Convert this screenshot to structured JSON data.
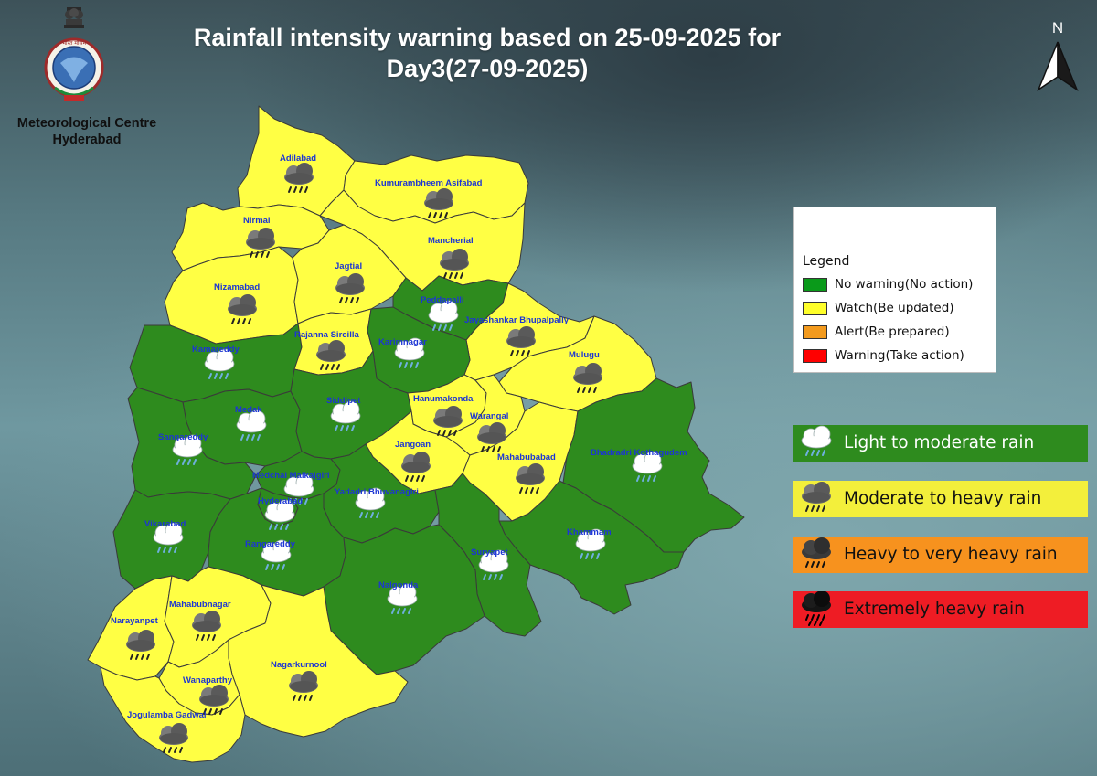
{
  "title": {
    "line1": "Rainfall intensity warning based on 25-09-2025 for",
    "line2": "Day3(27-09-2025)"
  },
  "organization": {
    "line1": "Meteorological Centre",
    "line2": "Hyderabad"
  },
  "north_arrow": {
    "label": "N"
  },
  "legend": {
    "title": "Legend",
    "items": [
      {
        "label": "No warning(No action)",
        "color": "#0a9a1a"
      },
      {
        "label": "Watch(Be updated)",
        "color": "#ffff2a"
      },
      {
        "label": "Alert(Be prepared)",
        "color": "#f39a1d"
      },
      {
        "label": "Warning(Take action)",
        "color": "#ff0000"
      }
    ]
  },
  "rain_categories": [
    {
      "label": "Light to moderate rain",
      "color": "#2e8b1e",
      "text_color": "#ffffff",
      "icon": "light-rain-cloud-icon"
    },
    {
      "label": "Moderate to heavy rain",
      "color": "#f3ef3b",
      "text_color": "#111111",
      "icon": "moderate-rain-cloud-icon"
    },
    {
      "label": "Heavy to very heavy rain",
      "color": "#f7921e",
      "text_color": "#111111",
      "icon": "heavy-rain-cloud-icon"
    },
    {
      "label": "Extremely heavy rain",
      "color": "#ee1c24",
      "text_color": "#111111",
      "icon": "extreme-rain-cloud-icon"
    }
  ],
  "colors": {
    "no_warning": "#2e8b1e",
    "watch": "#ffff44",
    "district_label": "#1c35d4"
  },
  "districts": [
    {
      "name": "Adilabad",
      "warning": "Watch(Be updated)",
      "rain": "Moderate to heavy rain"
    },
    {
      "name": "Kumurambheem Asifabad",
      "warning": "Watch(Be updated)",
      "rain": "Moderate to heavy rain"
    },
    {
      "name": "Nirmal",
      "warning": "Watch(Be updated)",
      "rain": "Moderate to heavy rain"
    },
    {
      "name": "Mancherial",
      "warning": "Watch(Be updated)",
      "rain": "Moderate to heavy rain"
    },
    {
      "name": "Nizamabad",
      "warning": "Watch(Be updated)",
      "rain": "Moderate to heavy rain"
    },
    {
      "name": "Jagtial",
      "warning": "Watch(Be updated)",
      "rain": "Moderate to heavy rain"
    },
    {
      "name": "Peddapalli",
      "warning": "No warning(No action)",
      "rain": "Light to moderate rain"
    },
    {
      "name": "Jayashankar Bhupalpally",
      "warning": "Watch(Be updated)",
      "rain": "Moderate to heavy rain"
    },
    {
      "name": "Kamareddy",
      "warning": "No warning(No action)",
      "rain": "Light to moderate rain"
    },
    {
      "name": "Rajanna Sircilla",
      "warning": "Watch(Be updated)",
      "rain": "Moderate to heavy rain"
    },
    {
      "name": "Karimnagar",
      "warning": "No warning(No action)",
      "rain": "Light to moderate rain"
    },
    {
      "name": "Mulugu",
      "warning": "Watch(Be updated)",
      "rain": "Moderate to heavy rain"
    },
    {
      "name": "Medak",
      "warning": "No warning(No action)",
      "rain": "Light to moderate rain"
    },
    {
      "name": "Siddipet",
      "warning": "No warning(No action)",
      "rain": "Light to moderate rain"
    },
    {
      "name": "Hanumakonda",
      "warning": "Watch(Be updated)",
      "rain": "Moderate to heavy rain"
    },
    {
      "name": "Warangal",
      "warning": "Watch(Be updated)",
      "rain": "Moderate to heavy rain"
    },
    {
      "name": "Sangareddy",
      "warning": "No warning(No action)",
      "rain": "Light to moderate rain"
    },
    {
      "name": "Jangoan",
      "warning": "Watch(Be updated)",
      "rain": "Moderate to heavy rain"
    },
    {
      "name": "Mahabubabad",
      "warning": "Watch(Be updated)",
      "rain": "Moderate to heavy rain"
    },
    {
      "name": "Bhadradri Kothagudem",
      "warning": "No warning(No action)",
      "rain": "Light to moderate rain"
    },
    {
      "name": "Medchal Malkajgiri",
      "warning": "No warning(No action)",
      "rain": "Light to moderate rain"
    },
    {
      "name": "Hyderabad",
      "warning": "No warning(No action)",
      "rain": "Light to moderate rain"
    },
    {
      "name": "Yadadri Bhuvanagiri",
      "warning": "No warning(No action)",
      "rain": "Light to moderate rain"
    },
    {
      "name": "Vikarabad",
      "warning": "No warning(No action)",
      "rain": "Light to moderate rain"
    },
    {
      "name": "Rangareddy",
      "warning": "No warning(No action)",
      "rain": "Light to moderate rain"
    },
    {
      "name": "Khammam",
      "warning": "No warning(No action)",
      "rain": "Light to moderate rain"
    },
    {
      "name": "Suryapet",
      "warning": "No warning(No action)",
      "rain": "Light to moderate rain"
    },
    {
      "name": "Nalgonda",
      "warning": "No warning(No action)",
      "rain": "Light to moderate rain"
    },
    {
      "name": "Narayanpet",
      "warning": "Watch(Be updated)",
      "rain": "Moderate to heavy rain"
    },
    {
      "name": "Mahabubnagar",
      "warning": "Watch(Be updated)",
      "rain": "Moderate to heavy rain"
    },
    {
      "name": "Nagarkurnool",
      "warning": "Watch(Be updated)",
      "rain": "Moderate to heavy rain"
    },
    {
      "name": "Wanaparthy",
      "warning": "Watch(Be updated)",
      "rain": "Moderate to heavy rain"
    },
    {
      "name": "Jogulamba Gadwal",
      "warning": "Watch(Be updated)",
      "rain": "Moderate to heavy rain"
    }
  ]
}
